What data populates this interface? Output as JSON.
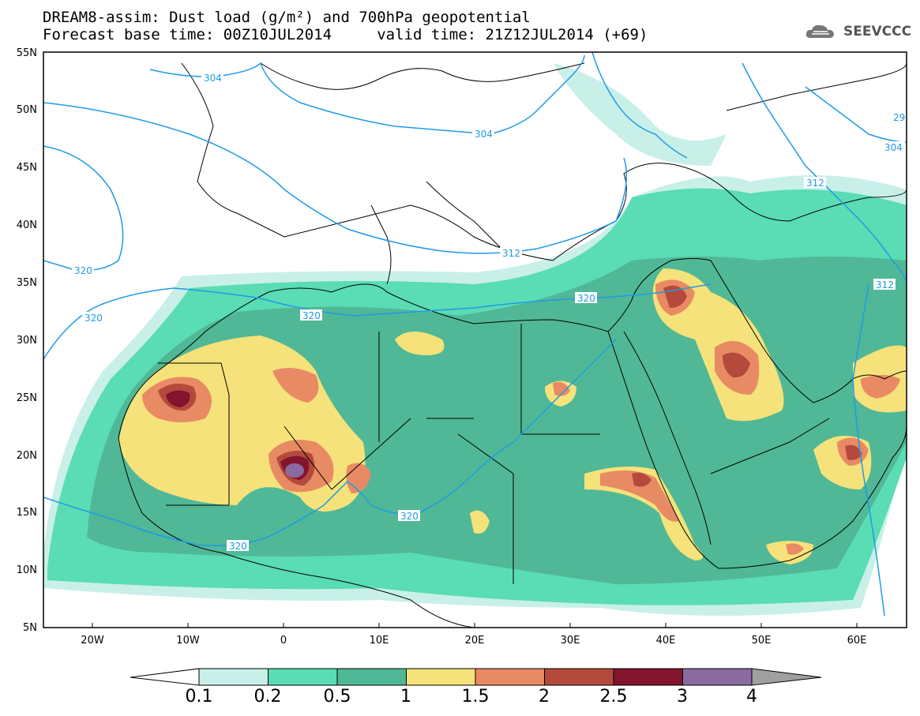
{
  "title_line1": "DREAM8-assim: Dust load (g/m²) and 700hPa geopotential",
  "title_line2": "Forecast base time: 00Z10JUL2014     valid time: 21Z12JUL2014 (+69)",
  "logo_text": "SEEVCCC",
  "x_ticks": [
    "20W",
    "10W",
    "0",
    "10E",
    "20E",
    "30E",
    "40E",
    "50E",
    "60E"
  ],
  "y_ticks": [
    "55N",
    "50N",
    "45N",
    "40N",
    "35N",
    "30N",
    "25N",
    "20N",
    "15N",
    "10N",
    "5N"
  ],
  "contour_labels": [
    "304",
    "304",
    "304",
    "312",
    "312",
    "320",
    "320",
    "320",
    "320",
    "320",
    "320",
    "312",
    "29"
  ],
  "colorbar": {
    "colors": [
      "#c8f0e8",
      "#5adcb4",
      "#50b896",
      "#f5e27a",
      "#e88a64",
      "#b44a3c",
      "#82142d",
      "#8a6aa0"
    ],
    "labels": [
      "0.1",
      "0.2",
      "0.5",
      "1",
      "1.5",
      "2",
      "2.5",
      "3",
      "4"
    ]
  },
  "colors": {
    "contour": "#1e9be6",
    "coast": "#000000"
  }
}
